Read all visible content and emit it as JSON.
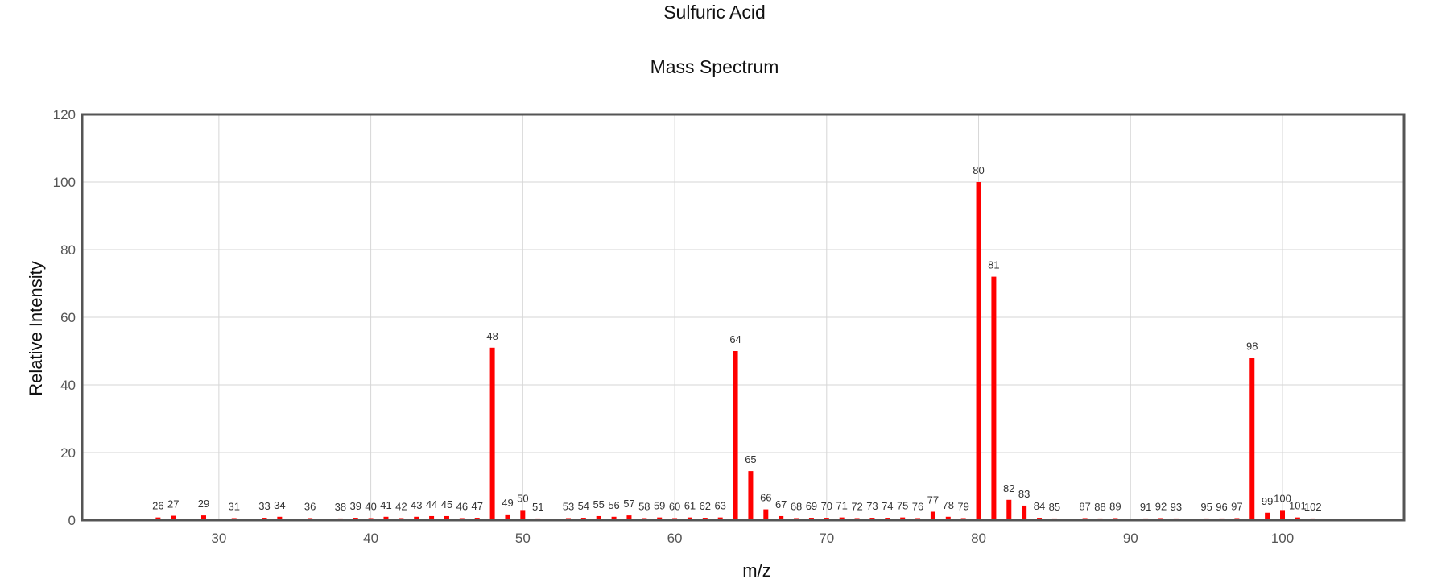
{
  "chart_data": {
    "type": "bar",
    "title": "Sulfuric Acid",
    "subtitle": "Mass Spectrum",
    "xlabel": "m/z",
    "ylabel": "Relative Intensity",
    "xlim": [
      21,
      108
    ],
    "ylim": [
      0,
      120
    ],
    "x_ticks": [
      30,
      40,
      50,
      60,
      70,
      80,
      90,
      100
    ],
    "y_ticks": [
      0,
      20,
      40,
      60,
      80,
      100,
      120
    ],
    "grid": true,
    "bar_color": "#ff0000",
    "peaks": [
      {
        "mz": 26,
        "intensity": 0.8
      },
      {
        "mz": 27,
        "intensity": 1.3
      },
      {
        "mz": 29,
        "intensity": 1.4
      },
      {
        "mz": 31,
        "intensity": 0.6
      },
      {
        "mz": 33,
        "intensity": 0.7
      },
      {
        "mz": 34,
        "intensity": 1.0
      },
      {
        "mz": 36,
        "intensity": 0.6
      },
      {
        "mz": 38,
        "intensity": 0.5
      },
      {
        "mz": 39,
        "intensity": 0.7
      },
      {
        "mz": 40,
        "intensity": 0.6
      },
      {
        "mz": 41,
        "intensity": 1.0
      },
      {
        "mz": 42,
        "intensity": 0.6
      },
      {
        "mz": 43,
        "intensity": 1.0
      },
      {
        "mz": 44,
        "intensity": 1.2
      },
      {
        "mz": 45,
        "intensity": 1.2
      },
      {
        "mz": 46,
        "intensity": 0.6
      },
      {
        "mz": 47,
        "intensity": 0.7
      },
      {
        "mz": 48,
        "intensity": 51.0
      },
      {
        "mz": 49,
        "intensity": 1.7
      },
      {
        "mz": 50,
        "intensity": 3.0
      },
      {
        "mz": 51,
        "intensity": 0.5
      },
      {
        "mz": 53,
        "intensity": 0.6
      },
      {
        "mz": 54,
        "intensity": 0.7
      },
      {
        "mz": 55,
        "intensity": 1.2
      },
      {
        "mz": 56,
        "intensity": 1.0
      },
      {
        "mz": 57,
        "intensity": 1.4
      },
      {
        "mz": 58,
        "intensity": 0.6
      },
      {
        "mz": 59,
        "intensity": 0.8
      },
      {
        "mz": 60,
        "intensity": 0.6
      },
      {
        "mz": 61,
        "intensity": 0.8
      },
      {
        "mz": 62,
        "intensity": 0.7
      },
      {
        "mz": 63,
        "intensity": 0.8
      },
      {
        "mz": 64,
        "intensity": 50.0
      },
      {
        "mz": 65,
        "intensity": 14.5
      },
      {
        "mz": 66,
        "intensity": 3.2
      },
      {
        "mz": 67,
        "intensity": 1.2
      },
      {
        "mz": 68,
        "intensity": 0.6
      },
      {
        "mz": 69,
        "intensity": 0.7
      },
      {
        "mz": 70,
        "intensity": 0.7
      },
      {
        "mz": 71,
        "intensity": 0.8
      },
      {
        "mz": 72,
        "intensity": 0.6
      },
      {
        "mz": 73,
        "intensity": 0.7
      },
      {
        "mz": 74,
        "intensity": 0.7
      },
      {
        "mz": 75,
        "intensity": 0.8
      },
      {
        "mz": 76,
        "intensity": 0.6
      },
      {
        "mz": 77,
        "intensity": 2.5
      },
      {
        "mz": 78,
        "intensity": 1.0
      },
      {
        "mz": 79,
        "intensity": 0.6
      },
      {
        "mz": 80,
        "intensity": 100.0
      },
      {
        "mz": 81,
        "intensity": 72.0
      },
      {
        "mz": 82,
        "intensity": 6.0
      },
      {
        "mz": 83,
        "intensity": 4.3
      },
      {
        "mz": 84,
        "intensity": 0.7
      },
      {
        "mz": 85,
        "intensity": 0.5
      },
      {
        "mz": 87,
        "intensity": 0.6
      },
      {
        "mz": 88,
        "intensity": 0.5
      },
      {
        "mz": 89,
        "intensity": 0.6
      },
      {
        "mz": 91,
        "intensity": 0.5
      },
      {
        "mz": 92,
        "intensity": 0.6
      },
      {
        "mz": 93,
        "intensity": 0.5
      },
      {
        "mz": 95,
        "intensity": 0.5
      },
      {
        "mz": 96,
        "intensity": 0.5
      },
      {
        "mz": 97,
        "intensity": 0.6
      },
      {
        "mz": 98,
        "intensity": 48.0
      },
      {
        "mz": 99,
        "intensity": 2.2
      },
      {
        "mz": 100,
        "intensity": 3.0
      },
      {
        "mz": 101,
        "intensity": 0.8
      },
      {
        "mz": 102,
        "intensity": 0.5
      }
    ]
  }
}
